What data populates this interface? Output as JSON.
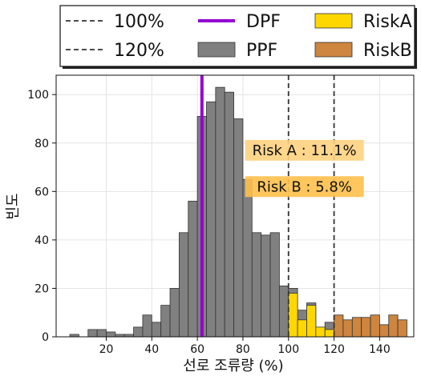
{
  "chart_data": {
    "type": "bar",
    "title": "",
    "xlabel": "선로 조류량 (%)",
    "ylabel": "빈도",
    "xlim": [
      -2,
      155
    ],
    "ylim": [
      0,
      108
    ],
    "xticks": [
      20,
      40,
      60,
      80,
      100,
      120,
      140
    ],
    "yticks": [
      0,
      20,
      40,
      60,
      80,
      100
    ],
    "grid": true,
    "bin_width": 4,
    "series": [
      {
        "name": "PPF",
        "color": "#808080",
        "bins": [
          {
            "x": 6,
            "value": 1
          },
          {
            "x": 10,
            "value": 0
          },
          {
            "x": 14,
            "value": 3
          },
          {
            "x": 18,
            "value": 3
          },
          {
            "x": 22,
            "value": 2
          },
          {
            "x": 26,
            "value": 1
          },
          {
            "x": 30,
            "value": 1
          },
          {
            "x": 34,
            "value": 4
          },
          {
            "x": 38,
            "value": 9
          },
          {
            "x": 42,
            "value": 6
          },
          {
            "x": 46,
            "value": 13
          },
          {
            "x": 50,
            "value": 20
          },
          {
            "x": 54,
            "value": 43
          },
          {
            "x": 58,
            "value": 56
          },
          {
            "x": 62,
            "value": 91
          },
          {
            "x": 66,
            "value": 97
          },
          {
            "x": 70,
            "value": 103
          },
          {
            "x": 74,
            "value": 101
          },
          {
            "x": 78,
            "value": 90
          },
          {
            "x": 82,
            "value": 65
          },
          {
            "x": 86,
            "value": 43
          },
          {
            "x": 90,
            "value": 42
          },
          {
            "x": 94,
            "value": 43
          },
          {
            "x": 98,
            "value": 21
          },
          {
            "x": 102,
            "value": 20
          },
          {
            "x": 106,
            "value": 11
          },
          {
            "x": 110,
            "value": 14
          },
          {
            "x": 114,
            "value": 4
          },
          {
            "x": 118,
            "value": 6
          }
        ]
      },
      {
        "name": "RiskA",
        "color": "#ffd700",
        "bins": [
          {
            "x": 102,
            "value": 18
          },
          {
            "x": 106,
            "value": 7
          },
          {
            "x": 110,
            "value": 13
          },
          {
            "x": 114,
            "value": 4
          },
          {
            "x": 118,
            "value": 3
          }
        ]
      },
      {
        "name": "RiskB",
        "color": "#cd853f",
        "bins": [
          {
            "x": 122,
            "value": 9
          },
          {
            "x": 126,
            "value": 7
          },
          {
            "x": 130,
            "value": 8
          },
          {
            "x": 134,
            "value": 8
          },
          {
            "x": 138,
            "value": 9
          },
          {
            "x": 142,
            "value": 5
          },
          {
            "x": 146,
            "value": 9
          },
          {
            "x": 150,
            "value": 7
          }
        ]
      }
    ],
    "reference_lines": [
      {
        "name": "DPF",
        "x": 62,
        "color": "#9400d3",
        "style": "solid"
      },
      {
        "name": "100%",
        "x": 100,
        "color": "#333333",
        "style": "dashed"
      },
      {
        "name": "120%",
        "x": 120,
        "color": "#333333",
        "style": "dashed"
      }
    ],
    "legend": {
      "position": "top",
      "entries": [
        {
          "label": "100%",
          "kind": "dashed",
          "color": "#333333"
        },
        {
          "label": "DPF",
          "kind": "line",
          "color": "#9400d3"
        },
        {
          "label": "RiskA",
          "kind": "patch",
          "color": "#ffd700"
        },
        {
          "label": "120%",
          "kind": "dashed",
          "color": "#333333"
        },
        {
          "label": "PPF",
          "kind": "patch",
          "color": "#808080"
        },
        {
          "label": "RiskB",
          "kind": "patch",
          "color": "#cd853f"
        }
      ]
    },
    "annotations": [
      {
        "text": "Risk A : 11.1%",
        "x": 107,
        "y": 77,
        "bg": "#ffd27f"
      },
      {
        "text": "Risk B : 5.8%",
        "x": 107,
        "y": 62,
        "bg": "#ffc04d"
      }
    ]
  }
}
